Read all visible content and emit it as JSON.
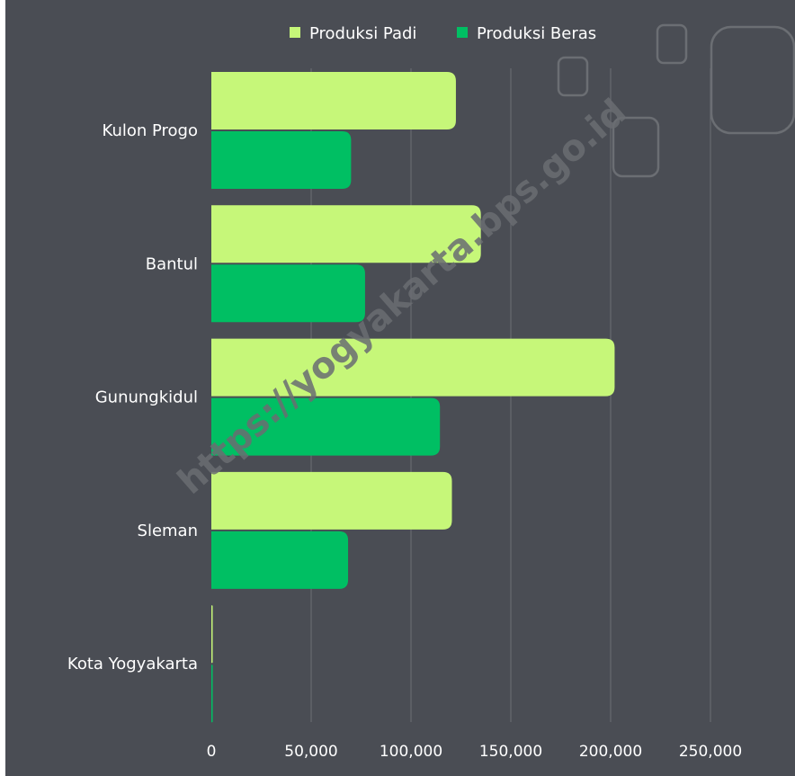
{
  "chart_data": {
    "type": "bar",
    "orientation": "horizontal",
    "categories": [
      "Kulon Progo",
      "Bantul",
      "Gunungkidul",
      "Sleman",
      "Kota Yogyakarta"
    ],
    "series": [
      {
        "name": "Produksi Padi",
        "color": "#c6f779",
        "values": [
          122500,
          135000,
          202000,
          120500,
          400
        ]
      },
      {
        "name": "Produksi Beras",
        "color": "#00bf63",
        "values": [
          70000,
          77000,
          114500,
          68500,
          230
        ]
      }
    ],
    "x_ticks": [
      "0",
      "50,000",
      "100,000",
      "150,000",
      "200,000",
      "250,000"
    ],
    "xlim": [
      0,
      250000
    ],
    "grid": true,
    "legend_position": "top-right",
    "background_color": "#4a4d54",
    "watermark": "https://yogyakarta.bps.go.id"
  }
}
